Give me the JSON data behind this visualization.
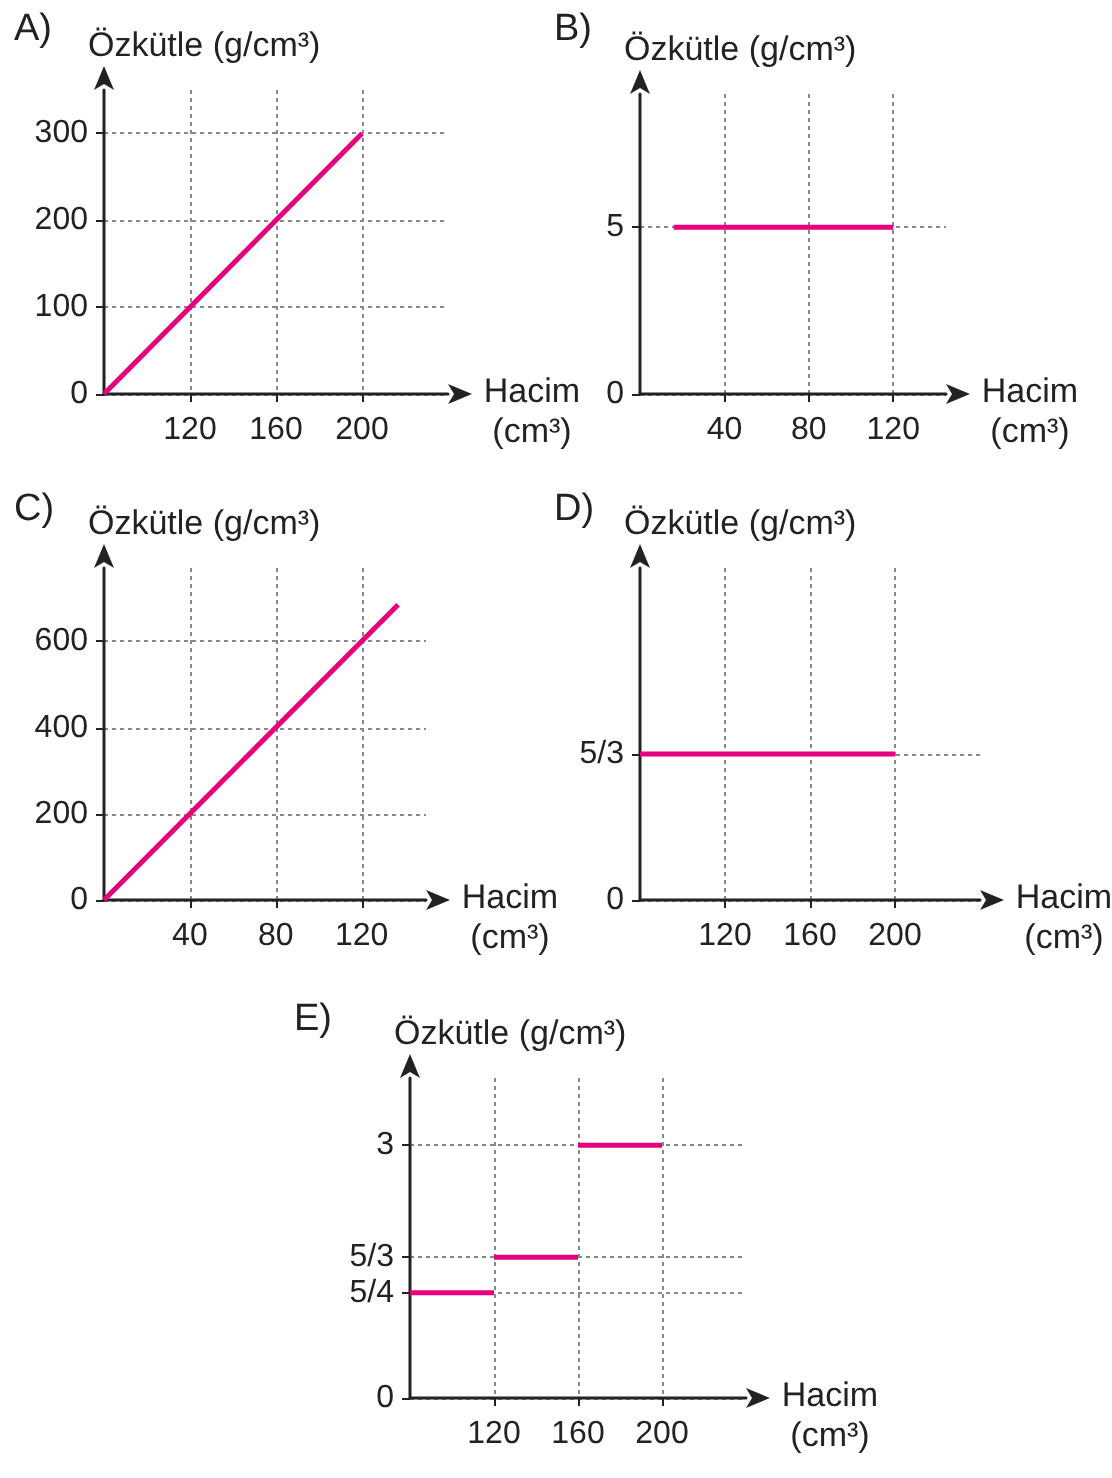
{
  "chart_data": [
    {
      "type": "line",
      "title": "A)",
      "xlabel": "Hacim (cm³)",
      "ylabel": "Özkütle (g/cm³)",
      "categories": [
        null,
        "120",
        "160",
        "200",
        null
      ],
      "values": [
        0,
        100,
        200,
        300,
        null
      ],
      "color": "#e6007e",
      "ylim": [
        0,
        350
      ],
      "yticks": [
        0,
        100,
        200,
        300
      ],
      "grid": true
    },
    {
      "type": "line",
      "title": "B)",
      "xlabel": "Hacim (cm³)",
      "ylabel": "Özkütle (g/cm³)",
      "x": [
        16,
        120
      ],
      "values": [
        5,
        5
      ],
      "color": "#e6007e",
      "xlim": [
        0,
        145
      ],
      "xticks": [
        40,
        80,
        120
      ],
      "ylim": [
        0,
        9
      ],
      "yticks": [
        0,
        5
      ],
      "grid": true
    },
    {
      "type": "line",
      "title": "C)",
      "xlabel": "Hacim (cm³)",
      "ylabel": "Özkütle (g/cm³)",
      "x": [
        0,
        137
      ],
      "values": [
        0,
        685
      ],
      "color": "#e6007e",
      "xlim": [
        0,
        150
      ],
      "xticks": [
        40,
        80,
        120
      ],
      "ylim": [
        0,
        770
      ],
      "yticks": [
        0,
        200,
        400,
        600
      ],
      "grid": true
    },
    {
      "type": "line",
      "title": "D)",
      "xlabel": "Hacim (cm³)",
      "ylabel": "Özkütle (g/cm³)",
      "categories": [
        null,
        "120",
        "160",
        "200",
        null
      ],
      "values": [
        1.67,
        1.67,
        1.67,
        1.67,
        null
      ],
      "color": "#e6007e",
      "ylim": [
        0,
        3.8
      ],
      "yticks": [
        0,
        {
          "value": 1.67,
          "label": "5/3"
        }
      ],
      "grid": true
    },
    {
      "type": "line",
      "title": "E)",
      "xlabel": "Hacim (cm³)",
      "ylabel": "Özkütle (g/cm³)",
      "categories": [
        null,
        "120",
        "160",
        "200",
        null
      ],
      "series": [
        {
          "color": "#e6007e",
          "values": [
            1.25,
            1.25,
            null,
            null,
            null
          ]
        },
        {
          "color": "#e6007e",
          "values": [
            null,
            1.67,
            1.67,
            null,
            null
          ]
        },
        {
          "color": "#e6007e",
          "values": [
            null,
            null,
            3,
            3,
            null
          ]
        }
      ],
      "ylim": [
        0,
        3.8
      ],
      "yticks": [
        0,
        {
          "value": 1.25,
          "label": "5/4"
        },
        {
          "value": 1.67,
          "label": "5/3"
        },
        {
          "value": 3,
          "label": "3"
        }
      ],
      "grid": true
    }
  ]
}
